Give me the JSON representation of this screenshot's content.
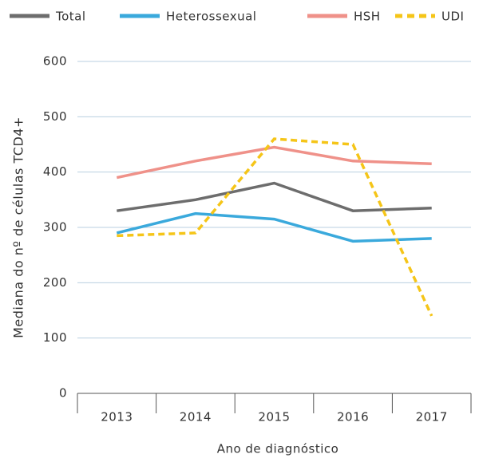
{
  "chart_data": {
    "type": "line",
    "x_label": "Ano de diagnóstico",
    "y_label": "Mediana do nº de células TCD4+",
    "categories": [
      "2013",
      "2014",
      "2015",
      "2016",
      "2017"
    ],
    "series": [
      {
        "name": "Total",
        "color": "#6d6d6d",
        "line_style": "solid",
        "values": [
          330,
          350,
          380,
          330,
          335
        ]
      },
      {
        "name": "Heterossexual",
        "color": "#3aa9dc",
        "line_style": "solid",
        "values": [
          290,
          325,
          315,
          275,
          280
        ]
      },
      {
        "name": "HSH",
        "color": "#ef9189",
        "line_style": "solid",
        "values": [
          390,
          420,
          445,
          420,
          415
        ]
      },
      {
        "name": "UDI",
        "color": "#f5c518",
        "line_style": "dashed",
        "values": [
          285,
          290,
          460,
          450,
          140
        ]
      }
    ],
    "ylim": [
      0,
      600
    ],
    "yticks": [
      0,
      100,
      200,
      300,
      400,
      500,
      600
    ],
    "grid": true,
    "legend": "top"
  }
}
